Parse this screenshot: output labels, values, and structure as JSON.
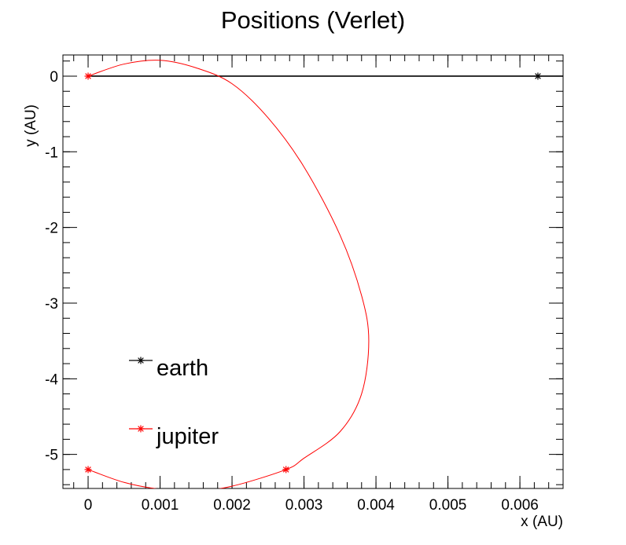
{
  "chart_data": {
    "type": "line",
    "title": "Positions (Verlet)",
    "xlabel": "x (AU)",
    "ylabel": "y (AU)",
    "xlim": [
      -0.00035,
      0.0066
    ],
    "ylim": [
      -5.45,
      0.28
    ],
    "xticks": [
      0,
      0.001,
      0.002,
      0.003,
      0.004,
      0.005,
      0.006
    ],
    "xtick_labels": [
      "0",
      "0.001",
      "0.002",
      "0.003",
      "0.004",
      "0.005",
      "0.006"
    ],
    "yticks": [
      0,
      -1,
      -2,
      -3,
      -4,
      -5
    ],
    "ytick_labels": [
      "0",
      "-1",
      "-2",
      "-3",
      "-4",
      "-5"
    ],
    "grid": false,
    "legend_position": "lower-left",
    "series": [
      {
        "name": "earth",
        "color": "#000000",
        "marker": "asterisk",
        "x": [
          0,
          0.0066
        ],
        "y": [
          0,
          0
        ],
        "marker_x": [
          0.00625
        ],
        "marker_y": [
          0
        ]
      },
      {
        "name": "jupiter",
        "color": "#ff0000",
        "marker": "asterisk",
        "x": [
          0,
          0.0005,
          0.001,
          0.0015,
          0.002,
          0.0025,
          0.003,
          0.0035,
          0.0038,
          0.0039,
          0.0038,
          0.0035,
          0.003,
          0.00275,
          0.002,
          0.0015,
          0.001,
          0.0005,
          0
        ],
        "y": [
          0,
          0.16,
          0.21,
          0.11,
          -0.1,
          -0.55,
          -1.2,
          -2.1,
          -2.9,
          -3.5,
          -4.2,
          -4.7,
          -5.05,
          -5.2,
          -5.42,
          -5.48,
          -5.46,
          -5.37,
          -5.2
        ],
        "marker_x": [
          0,
          0,
          0.00275
        ],
        "marker_y": [
          0,
          -5.2,
          -5.2
        ]
      }
    ]
  }
}
